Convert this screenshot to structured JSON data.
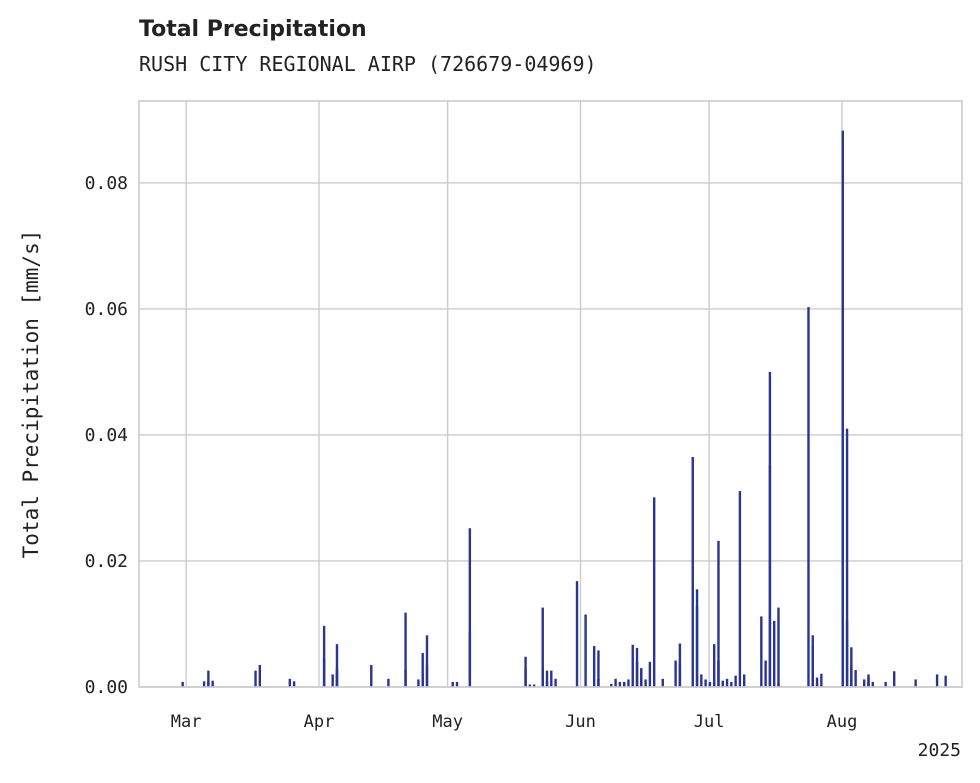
{
  "chart_data": {
    "type": "bar",
    "title": "Total Precipitation",
    "subtitle": "RUSH CITY REGIONAL AIRP (726679-04969)",
    "xlabel": "",
    "ylabel": "Total Precipitation [mm/s]",
    "ylim": [
      0,
      0.093
    ],
    "yticks": [
      0.0,
      0.02,
      0.04,
      0.06,
      0.08
    ],
    "ytick_labels": [
      "0.00",
      "0.02",
      "0.04",
      "0.06",
      "0.08"
    ],
    "xlim": [
      "2025-02-18",
      "2025-08-29"
    ],
    "xticks": [
      "2025-03-01",
      "2025-04-01",
      "2025-05-01",
      "2025-06-01",
      "2025-07-01",
      "2025-08-01"
    ],
    "xtick_labels": [
      "Mar",
      "Apr",
      "May",
      "Jun",
      "Jul",
      "Aug"
    ],
    "x_offset_label": "2025",
    "grid": true,
    "color": "#283593",
    "x": [
      "2025-02-28",
      "2025-03-05",
      "2025-03-06",
      "2025-03-06",
      "2025-03-07",
      "2025-03-17",
      "2025-03-18",
      "2025-03-25",
      "2025-03-26",
      "2025-04-02",
      "2025-04-02",
      "2025-04-04",
      "2025-04-05",
      "2025-04-05",
      "2025-04-05",
      "2025-04-13",
      "2025-04-17",
      "2025-04-21",
      "2025-04-21",
      "2025-04-24",
      "2025-04-25",
      "2025-04-25",
      "2025-04-26",
      "2025-04-26",
      "2025-05-02",
      "2025-05-03",
      "2025-05-06",
      "2025-05-06",
      "2025-05-19",
      "2025-05-19",
      "2025-05-20",
      "2025-05-21",
      "2025-05-23",
      "2025-05-23",
      "2025-05-24",
      "2025-05-24",
      "2025-05-25",
      "2025-05-26",
      "2025-05-31",
      "2025-06-02",
      "2025-06-04",
      "2025-06-05",
      "2025-06-05",
      "2025-06-08",
      "2025-06-09",
      "2025-06-10",
      "2025-06-11",
      "2025-06-11",
      "2025-06-12",
      "2025-06-13",
      "2025-06-14",
      "2025-06-14",
      "2025-06-15",
      "2025-06-15",
      "2025-06-15",
      "2025-06-16",
      "2025-06-17",
      "2025-06-18",
      "2025-06-20",
      "2025-06-23",
      "2025-06-24",
      "2025-06-24",
      "2025-06-27",
      "2025-06-28",
      "2025-06-28",
      "2025-06-29",
      "2025-06-30",
      "2025-07-01",
      "2025-07-02",
      "2025-07-02",
      "2025-07-03",
      "2025-07-03",
      "2025-07-04",
      "2025-07-05",
      "2025-07-06",
      "2025-07-07",
      "2025-07-08",
      "2025-07-09",
      "2025-07-13",
      "2025-07-14",
      "2025-07-15",
      "2025-07-15",
      "2025-07-16",
      "2025-07-17",
      "2025-07-17",
      "2025-07-24",
      "2025-07-25",
      "2025-07-25",
      "2025-07-26",
      "2025-07-26",
      "2025-07-27",
      "2025-08-01",
      "2025-08-02",
      "2025-08-02",
      "2025-08-03",
      "2025-08-03",
      "2025-08-04",
      "2025-08-06",
      "2025-08-07",
      "2025-08-07",
      "2025-08-07",
      "2025-08-08",
      "2025-08-11",
      "2025-08-13",
      "2025-08-18",
      "2025-08-23",
      "2025-08-25"
    ],
    "values": [
      0.0008,
      0.0009,
      0.0009,
      0.0026,
      0.001,
      0.0026,
      0.0035,
      0.0013,
      0.0009,
      0.0097,
      0.0045,
      0.002,
      0.0025,
      0.0068,
      0.003,
      0.0035,
      0.0013,
      0.0027,
      0.0118,
      0.0012,
      0.0054,
      0.002,
      0.0082,
      0.0035,
      0.0008,
      0.0008,
      0.0252,
      0.0088,
      0.0048,
      0.0028,
      0.0004,
      0.0004,
      0.0126,
      0.003,
      0.0026,
      0.0008,
      0.0026,
      0.0013,
      0.0168,
      0.0115,
      0.0065,
      0.0058,
      0.0013,
      0.0005,
      0.0013,
      0.0008,
      0.0008,
      0.0008,
      0.0012,
      0.0067,
      0.0062,
      0.004,
      0.0028,
      0.0013,
      0.003,
      0.0012,
      0.004,
      0.0301,
      0.0013,
      0.0042,
      0.0036,
      0.0069,
      0.0365,
      0.0155,
      0.0128,
      0.002,
      0.0012,
      0.0008,
      0.0068,
      0.0008,
      0.0232,
      0.0042,
      0.001,
      0.0013,
      0.0008,
      0.0018,
      0.0311,
      0.002,
      0.0112,
      0.0042,
      0.0352,
      0.05,
      0.0105,
      0.0126,
      0.0006,
      0.0603,
      0.0082,
      0.0065,
      0.0015,
      0.0005,
      0.0021,
      0.0883,
      0.041,
      0.0105,
      0.0035,
      0.0063,
      0.0027,
      0.0012,
      0.002,
      0.0015,
      0.0008,
      0.0008,
      0.0008,
      0.0025,
      0.0012,
      0.002,
      0.0018
    ]
  }
}
